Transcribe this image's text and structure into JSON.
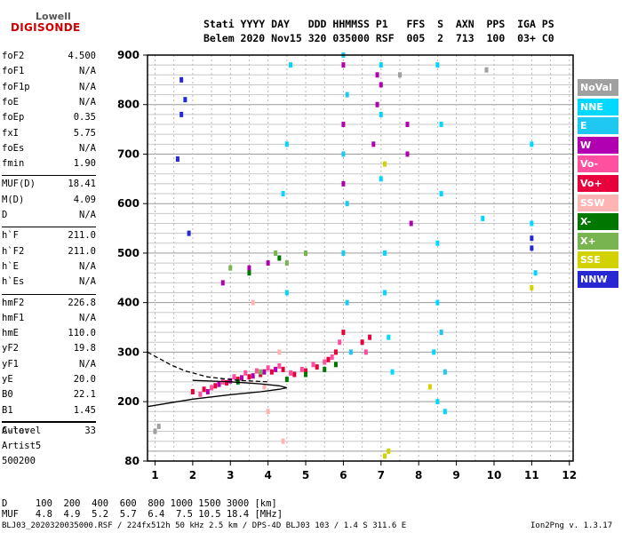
{
  "logo": {
    "line1": "Lowell",
    "line2": "DIGISONDE"
  },
  "header": {
    "row1": "Stati YYYY DAY   DDD HHMMSS P1   FFS  S  AXN  PPS  IGA PS",
    "row2": "Belem 2020 Nov15 320 035000 RSF  005  2  713  100  03+ C0"
  },
  "params": [
    {
      "k": "foF2",
      "v": "4.500"
    },
    {
      "k": "foF1",
      "v": "N/A"
    },
    {
      "k": "foF1p",
      "v": "N/A"
    },
    {
      "k": "foE",
      "v": "N/A"
    },
    {
      "k": "foEp",
      "v": "0.35"
    },
    {
      "k": "fxI",
      "v": "5.75"
    },
    {
      "k": "foEs",
      "v": "N/A"
    },
    {
      "k": "fmin",
      "v": "1.90"
    },
    {
      "k": "MUF(D)",
      "v": "18.41"
    },
    {
      "k": "M(D)",
      "v": "4.09"
    },
    {
      "k": "D",
      "v": "N/A"
    },
    {
      "k": "h`F",
      "v": "211.0"
    },
    {
      "k": "h`F2",
      "v": "211.0"
    },
    {
      "k": "h`E",
      "v": "N/A"
    },
    {
      "k": "h`Es",
      "v": "N/A"
    },
    {
      "k": "hmF2",
      "v": "226.8"
    },
    {
      "k": "hmF1",
      "v": "N/A"
    },
    {
      "k": "hmE",
      "v": "110.0"
    },
    {
      "k": "yF2",
      "v": "19.8"
    },
    {
      "k": "yF1",
      "v": "N/A"
    },
    {
      "k": "yE",
      "v": "20.0"
    },
    {
      "k": "B0",
      "v": "22.1"
    },
    {
      "k": "B1",
      "v": "1.45"
    },
    {
      "k": "C-level",
      "v": "33"
    }
  ],
  "auto": {
    "l1": "Auto:",
    "l2": "Artist5",
    "l3": "500200"
  },
  "footer": {
    "d_row": "D     100  200  400  600  800 1000 1500 3000 [km]",
    "muf_row": "MUF   4.8  4.9  5.2  5.7  6.4  7.5 10.5 18.4 [MHz]",
    "file": "BLJ03_2020320035000.RSF / 224fx512h 50 kHz 2.5 km / DPS-4D BLJ03 103 / 1.4 S 311.6 E",
    "version": "Ion2Png v. 1.3.17"
  },
  "legend": [
    {
      "label": "NoVal",
      "color": "#a0a0a0"
    },
    {
      "label": "NNE",
      "color": "#00d8ff"
    },
    {
      "label": "E",
      "color": "#1ec8f0"
    },
    {
      "label": "W",
      "color": "#b000b0"
    },
    {
      "label": "Vo-",
      "color": "#ff50a0"
    },
    {
      "label": "Vo+",
      "color": "#e8003c"
    },
    {
      "label": "SSW",
      "color": "#ffb4b4"
    },
    {
      "label": "X-",
      "color": "#007800"
    },
    {
      "label": "X+",
      "color": "#78b450"
    },
    {
      "label": "SSE",
      "color": "#d2d200"
    },
    {
      "label": "NNW",
      "color": "#2828d2"
    }
  ],
  "chart_data": {
    "type": "scatter",
    "xlabel": "",
    "ylabel": "",
    "xlim": [
      0.8,
      12.1
    ],
    "ylim": [
      80,
      900
    ],
    "x_ticks": [
      1,
      2,
      3,
      4,
      5,
      6,
      7,
      8,
      9,
      10,
      11,
      12
    ],
    "y_ticks": [
      80,
      200,
      300,
      400,
      500,
      600,
      700,
      800,
      900
    ],
    "grid": true,
    "legend_position": "right",
    "series": [
      {
        "legend_index": 5,
        "points": [
          [
            2.0,
            220
          ],
          [
            2.3,
            225
          ],
          [
            2.6,
            232
          ],
          [
            2.9,
            238
          ],
          [
            3.2,
            245
          ],
          [
            3.5,
            250
          ],
          [
            3.8,
            255
          ],
          [
            4.1,
            260
          ],
          [
            4.4,
            265
          ],
          [
            4.7,
            255
          ],
          [
            5.0,
            262
          ],
          [
            5.3,
            270
          ],
          [
            5.6,
            285
          ],
          [
            5.8,
            300
          ],
          [
            6.0,
            340
          ],
          [
            6.5,
            320
          ],
          [
            6.7,
            330
          ]
        ]
      },
      {
        "legend_index": 4,
        "points": [
          [
            2.2,
            215
          ],
          [
            2.5,
            228
          ],
          [
            2.8,
            240
          ],
          [
            3.1,
            250
          ],
          [
            3.4,
            258
          ],
          [
            3.7,
            262
          ],
          [
            4.0,
            268
          ],
          [
            4.3,
            272
          ],
          [
            4.6,
            258
          ],
          [
            4.9,
            265
          ],
          [
            5.2,
            275
          ],
          [
            5.5,
            280
          ],
          [
            5.7,
            290
          ],
          [
            5.9,
            320
          ],
          [
            6.6,
            300
          ]
        ]
      },
      {
        "legend_index": 3,
        "points": [
          [
            2.4,
            220
          ],
          [
            2.7,
            235
          ],
          [
            3.0,
            242
          ],
          [
            3.3,
            248
          ],
          [
            3.6,
            252
          ],
          [
            3.9,
            260
          ],
          [
            4.2,
            265
          ],
          [
            6.0,
            880
          ],
          [
            6.0,
            760
          ],
          [
            6.0,
            640
          ],
          [
            6.9,
            860
          ],
          [
            6.9,
            800
          ],
          [
            6.8,
            720
          ],
          [
            7.0,
            840
          ],
          [
            7.7,
            760
          ],
          [
            7.7,
            700
          ],
          [
            7.8,
            560
          ],
          [
            2.8,
            440
          ],
          [
            3.5,
            470
          ],
          [
            4.0,
            480
          ]
        ]
      },
      {
        "legend_index": 7,
        "points": [
          [
            3.2,
            240
          ],
          [
            4.5,
            245
          ],
          [
            5.0,
            255
          ],
          [
            5.5,
            265
          ],
          [
            5.8,
            275
          ],
          [
            3.5,
            460
          ],
          [
            4.3,
            490
          ]
        ]
      },
      {
        "legend_index": 8,
        "points": [
          [
            3.0,
            470
          ],
          [
            4.2,
            500
          ],
          [
            4.5,
            480
          ],
          [
            5.0,
            500
          ],
          [
            3.8,
            260
          ]
        ]
      },
      {
        "legend_index": 6,
        "points": [
          [
            4.3,
            300
          ],
          [
            3.9,
            230
          ],
          [
            4.0,
            180
          ],
          [
            3.6,
            400
          ],
          [
            4.4,
            120
          ]
        ]
      },
      {
        "legend_index": 1,
        "points": [
          [
            4.6,
            880
          ],
          [
            4.5,
            720
          ],
          [
            4.4,
            620
          ],
          [
            4.5,
            420
          ],
          [
            7.0,
            880
          ],
          [
            7.0,
            780
          ],
          [
            7.0,
            650
          ],
          [
            7.1,
            500
          ],
          [
            7.1,
            420
          ],
          [
            7.2,
            330
          ],
          [
            7.3,
            260
          ],
          [
            8.5,
            880
          ],
          [
            8.6,
            760
          ],
          [
            8.6,
            620
          ],
          [
            8.5,
            520
          ],
          [
            8.5,
            400
          ],
          [
            8.4,
            300
          ],
          [
            8.5,
            200
          ],
          [
            8.7,
            180
          ],
          [
            11.0,
            720
          ],
          [
            11.0,
            560
          ],
          [
            11.1,
            460
          ],
          [
            9.7,
            570
          ]
        ]
      },
      {
        "legend_index": 2,
        "points": [
          [
            6.0,
            900
          ],
          [
            6.1,
            820
          ],
          [
            6.0,
            700
          ],
          [
            6.1,
            600
          ],
          [
            6.0,
            500
          ],
          [
            6.1,
            400
          ],
          [
            6.2,
            300
          ],
          [
            8.6,
            340
          ],
          [
            8.7,
            260
          ]
        ]
      },
      {
        "legend_index": 10,
        "points": [
          [
            1.7,
            850
          ],
          [
            1.8,
            810
          ],
          [
            1.7,
            780
          ],
          [
            1.9,
            540
          ],
          [
            1.6,
            690
          ],
          [
            11.0,
            530
          ],
          [
            11.0,
            510
          ]
        ]
      },
      {
        "legend_index": 9,
        "points": [
          [
            7.1,
            680
          ],
          [
            7.2,
            100
          ],
          [
            7.1,
            90
          ],
          [
            8.3,
            230
          ],
          [
            11.0,
            430
          ]
        ]
      },
      {
        "legend_index": 0,
        "points": [
          [
            1.0,
            140
          ],
          [
            1.1,
            150
          ],
          [
            7.5,
            860
          ],
          [
            9.8,
            870
          ]
        ]
      }
    ],
    "curves": [
      {
        "style": "solid",
        "points": [
          [
            0.8,
            190
          ],
          [
            2.0,
            205
          ],
          [
            3.0,
            214
          ],
          [
            3.8,
            220
          ],
          [
            4.3,
            225
          ],
          [
            4.5,
            228
          ],
          [
            4.3,
            232
          ],
          [
            3.8,
            236
          ],
          [
            3.0,
            240
          ],
          [
            2.0,
            243
          ]
        ]
      },
      {
        "style": "dashed",
        "points": [
          [
            0.8,
            300
          ],
          [
            1.4,
            275
          ],
          [
            1.8,
            262
          ],
          [
            2.4,
            250
          ],
          [
            3.2,
            243
          ],
          [
            4.0,
            240
          ]
        ]
      }
    ]
  }
}
